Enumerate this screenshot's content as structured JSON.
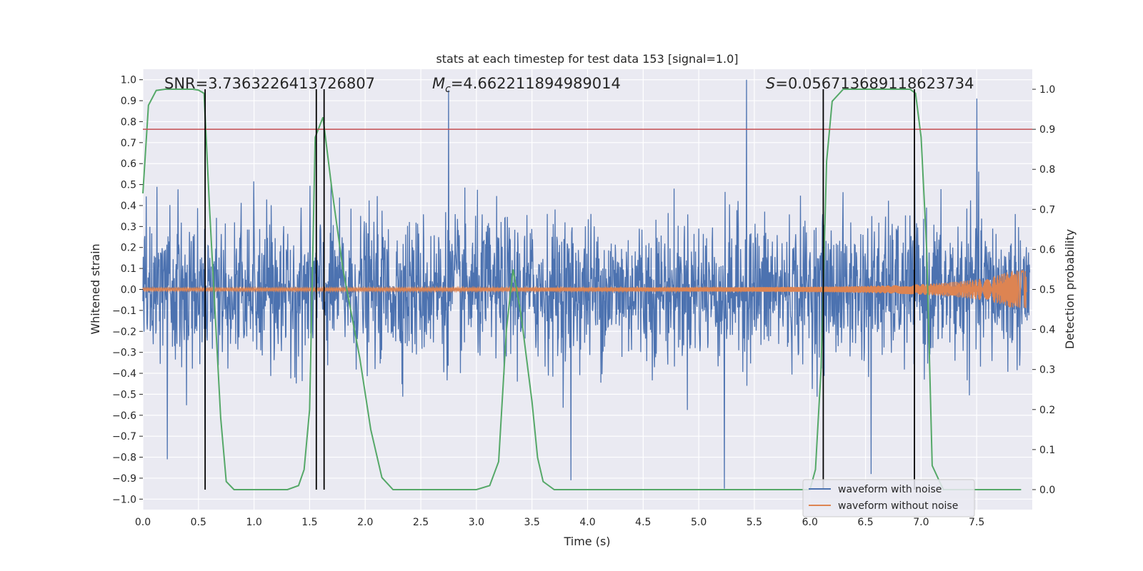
{
  "chart_data": {
    "type": "line",
    "title": "stats at each timestep for test data 153 [signal=1.0]",
    "xlabel": "Time (s)",
    "ylabel_left": "Whitened strain",
    "ylabel_right": "Detection probability",
    "xlim": [
      0.0,
      8.0
    ],
    "ylim_left": [
      -1.05,
      1.05
    ],
    "ylim_right": [
      -0.05,
      1.05
    ],
    "grid": true,
    "legend_position": "lower-right",
    "x_ticks": [
      "0.0",
      "0.5",
      "1.0",
      "1.5",
      "2.0",
      "2.5",
      "3.0",
      "3.5",
      "4.0",
      "4.5",
      "5.0",
      "5.5",
      "6.0",
      "6.5",
      "7.0",
      "7.5"
    ],
    "y_ticks_left": [
      "−1.0",
      "−0.9",
      "−0.8",
      "−0.7",
      "−0.6",
      "−0.5",
      "−0.4",
      "−0.3",
      "−0.2",
      "−0.1",
      "0.0",
      "0.1",
      "0.2",
      "0.3",
      "0.4",
      "0.5",
      "0.6",
      "0.7",
      "0.8",
      "0.9",
      "1.0"
    ],
    "y_ticks_right": [
      "0.0",
      "0.1",
      "0.2",
      "0.3",
      "0.4",
      "0.5",
      "0.6",
      "0.7",
      "0.8",
      "0.9",
      "1.0"
    ],
    "annotations": {
      "snr_label": "SNR=3.7363226413726807",
      "mc_label_main": "M",
      "mc_label_sub": "c",
      "mc_label_value": "=4.662211894989014",
      "s_label_main": "S",
      "s_label_value": "=0.056713689118623734"
    },
    "series": [
      {
        "name": "waveform with noise",
        "color": "#4c72b0",
        "axis": "left",
        "description_values": "dense noise, typical amplitude ±0.4, peaks to ±1.0",
        "notable_peaks": [
          {
            "x": 0.22,
            "y": -0.81
          },
          {
            "x": 0.56,
            "y": -0.67
          },
          {
            "x": 2.75,
            "y": 0.95
          },
          {
            "x": 3.85,
            "y": -0.91
          },
          {
            "x": 5.23,
            "y": -0.95
          },
          {
            "x": 5.43,
            "y": 1.0
          },
          {
            "x": 6.55,
            "y": -0.88
          },
          {
            "x": 7.5,
            "y": 0.91
          }
        ]
      },
      {
        "name": "waveform without noise",
        "color": "#dd8452",
        "axis": "left",
        "chirp": {
          "start_amplitude": 0.008,
          "end_amplitude": 0.09,
          "end_time": 7.95
        }
      },
      {
        "name": "",
        "color": "#55a868",
        "axis": "right",
        "x": [
          0.0,
          0.05,
          0.12,
          0.2,
          0.3,
          0.45,
          0.5,
          0.55,
          0.6,
          0.7,
          0.75,
          0.82,
          1.0,
          1.3,
          1.4,
          1.45,
          1.5,
          1.55,
          1.62,
          1.7,
          1.8,
          1.95,
          2.05,
          2.15,
          2.25,
          2.5,
          3.0,
          3.12,
          3.2,
          3.27,
          3.33,
          3.4,
          3.5,
          3.55,
          3.6,
          3.7,
          4.0,
          5.0,
          6.0,
          6.05,
          6.1,
          6.15,
          6.2,
          6.3,
          6.6,
          6.9,
          6.95,
          7.0,
          7.05,
          7.1,
          7.2,
          7.9
        ],
        "values": [
          0.74,
          0.96,
          0.997,
          1.0,
          1.0,
          1.0,
          0.998,
          0.99,
          0.7,
          0.18,
          0.02,
          0.0,
          0.0,
          0.0,
          0.01,
          0.05,
          0.2,
          0.88,
          0.93,
          0.75,
          0.55,
          0.33,
          0.15,
          0.03,
          0.0,
          0.0,
          0.0,
          0.01,
          0.07,
          0.4,
          0.55,
          0.44,
          0.22,
          0.08,
          0.02,
          0.0,
          0.0,
          0.0,
          0.0,
          0.05,
          0.3,
          0.82,
          0.97,
          1.0,
          1.0,
          1.0,
          0.99,
          0.88,
          0.6,
          0.06,
          0.0,
          0.0
        ]
      }
    ],
    "reference_lines": [
      {
        "orientation": "horizontal",
        "axis": "right",
        "y": 0.9,
        "color": "#c44e52"
      },
      {
        "orientation": "vertical",
        "x": 0.56,
        "color": "#000000"
      },
      {
        "orientation": "vertical",
        "x": 1.56,
        "color": "#000000"
      },
      {
        "orientation": "vertical",
        "x": 1.63,
        "color": "#000000"
      },
      {
        "orientation": "vertical",
        "x": 6.12,
        "color": "#000000"
      },
      {
        "orientation": "vertical",
        "x": 6.94,
        "color": "#000000"
      }
    ]
  }
}
